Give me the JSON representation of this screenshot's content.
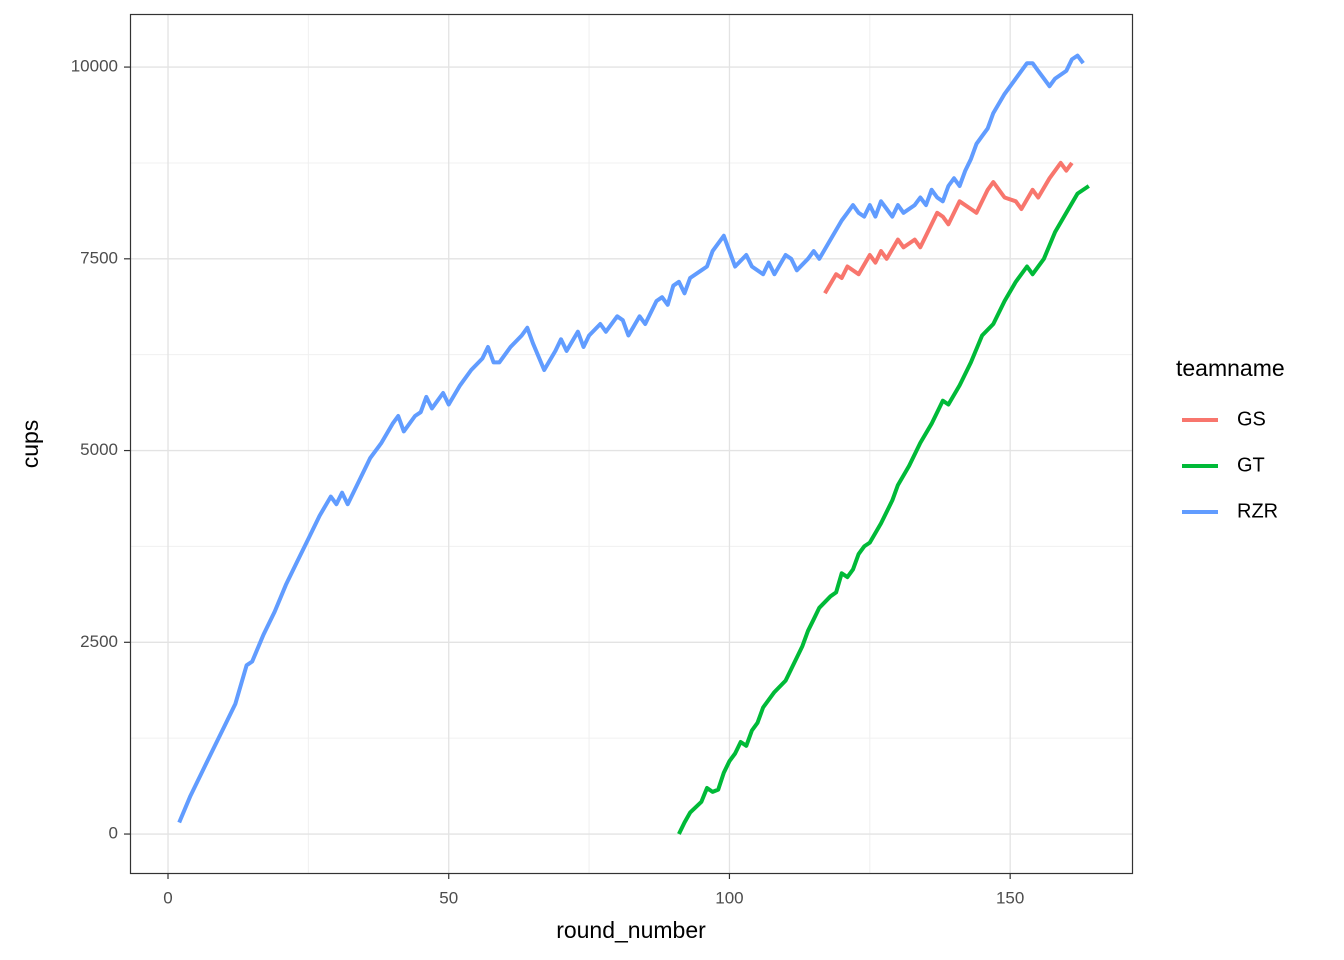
{
  "chart_data": {
    "type": "line",
    "x_label": "round_number",
    "y_label": "cups",
    "legend_title": "teamname",
    "xlim": [
      -6.77,
      171.7
    ],
    "ylim": [
      -508,
      10692
    ],
    "xticks": [
      0,
      50,
      100,
      150
    ],
    "yticks": [
      0,
      2500,
      5000,
      7500,
      10000
    ],
    "x_minor_ticks": [
      25,
      75,
      125
    ],
    "y_minor_ticks": [
      1250,
      3750,
      6250,
      8750
    ],
    "grid": true,
    "legend": "right",
    "series": [
      {
        "name": "GS",
        "color": "#F8766D",
        "x": [
          117,
          119,
          120,
          121,
          123,
          125,
          126,
          127,
          128,
          130,
          131,
          132,
          133,
          134,
          136,
          137,
          138,
          139,
          141,
          143,
          144,
          146,
          147,
          149,
          151,
          152,
          154,
          155,
          157,
          159,
          160,
          161
        ],
        "values": [
          7050,
          7300,
          7250,
          7400,
          7300,
          7550,
          7450,
          7600,
          7500,
          7750,
          7650,
          7700,
          7750,
          7650,
          7950,
          8100,
          8050,
          7950,
          8250,
          8150,
          8100,
          8400,
          8500,
          8300,
          8250,
          8150,
          8400,
          8300,
          8550,
          8750,
          8650,
          8750
        ]
      },
      {
        "name": "GT",
        "color": "#00BA38",
        "x": [
          91,
          92,
          93,
          95,
          96,
          97,
          98,
          99,
          100,
          101,
          102,
          103,
          104,
          105,
          106,
          108,
          110,
          112,
          113,
          114,
          115,
          116,
          118,
          119,
          120,
          121,
          122,
          123,
          124,
          125,
          127,
          129,
          130,
          132,
          134,
          136,
          138,
          139,
          141,
          143,
          145,
          147,
          149,
          151,
          153,
          154,
          156,
          158,
          160,
          162,
          164
        ],
        "values": [
          0,
          150,
          280,
          420,
          600,
          550,
          580,
          800,
          950,
          1050,
          1200,
          1150,
          1350,
          1450,
          1650,
          1850,
          2000,
          2300,
          2450,
          2650,
          2800,
          2950,
          3100,
          3150,
          3400,
          3350,
          3450,
          3650,
          3750,
          3800,
          4050,
          4350,
          4550,
          4800,
          5100,
          5350,
          5650,
          5600,
          5850,
          6150,
          6500,
          6650,
          6950,
          7200,
          7400,
          7300,
          7500,
          7850,
          8100,
          8350,
          8450
        ]
      },
      {
        "name": "RZR",
        "color": "#619CFF",
        "x": [
          2,
          4,
          6,
          8,
          10,
          12,
          14,
          15,
          17,
          19,
          21,
          23,
          25,
          27,
          29,
          30,
          31,
          32,
          34,
          36,
          38,
          40,
          41,
          42,
          44,
          45,
          46,
          47,
          49,
          50,
          52,
          54,
          56,
          57,
          58,
          59,
          61,
          63,
          64,
          65,
          67,
          69,
          70,
          71,
          73,
          74,
          75,
          77,
          78,
          80,
          81,
          82,
          84,
          85,
          87,
          88,
          89,
          90,
          91,
          92,
          93,
          95,
          96,
          97,
          99,
          100,
          101,
          103,
          104,
          106,
          107,
          108,
          110,
          111,
          112,
          114,
          115,
          116,
          118,
          120,
          121,
          122,
          123,
          124,
          125,
          126,
          127,
          128,
          129,
          130,
          131,
          133,
          134,
          135,
          136,
          137,
          138,
          139,
          140,
          141,
          142,
          143,
          144,
          145,
          146,
          147,
          149,
          151,
          153,
          154,
          155,
          156,
          157,
          158,
          160,
          161,
          162,
          163
        ],
        "values": [
          150,
          500,
          800,
          1100,
          1400,
          1700,
          2200,
          2250,
          2600,
          2900,
          3250,
          3550,
          3850,
          4150,
          4400,
          4300,
          4450,
          4300,
          4600,
          4900,
          5100,
          5350,
          5450,
          5250,
          5450,
          5500,
          5700,
          5550,
          5750,
          5600,
          5850,
          6050,
          6200,
          6350,
          6150,
          6150,
          6350,
          6500,
          6600,
          6400,
          6050,
          6300,
          6450,
          6300,
          6550,
          6350,
          6500,
          6650,
          6550,
          6750,
          6700,
          6500,
          6750,
          6650,
          6950,
          7000,
          6900,
          7150,
          7200,
          7050,
          7250,
          7350,
          7400,
          7600,
          7800,
          7600,
          7400,
          7550,
          7400,
          7300,
          7450,
          7300,
          7550,
          7500,
          7350,
          7500,
          7600,
          7500,
          7750,
          8000,
          8100,
          8200,
          8100,
          8050,
          8200,
          8050,
          8250,
          8150,
          8050,
          8200,
          8100,
          8200,
          8300,
          8200,
          8400,
          8300,
          8250,
          8450,
          8550,
          8450,
          8650,
          8800,
          9000,
          9100,
          9200,
          9400,
          9650,
          9850,
          10050,
          10050,
          9950,
          9850,
          9750,
          9850,
          9950,
          10100,
          10150,
          10050
        ]
      }
    ]
  }
}
